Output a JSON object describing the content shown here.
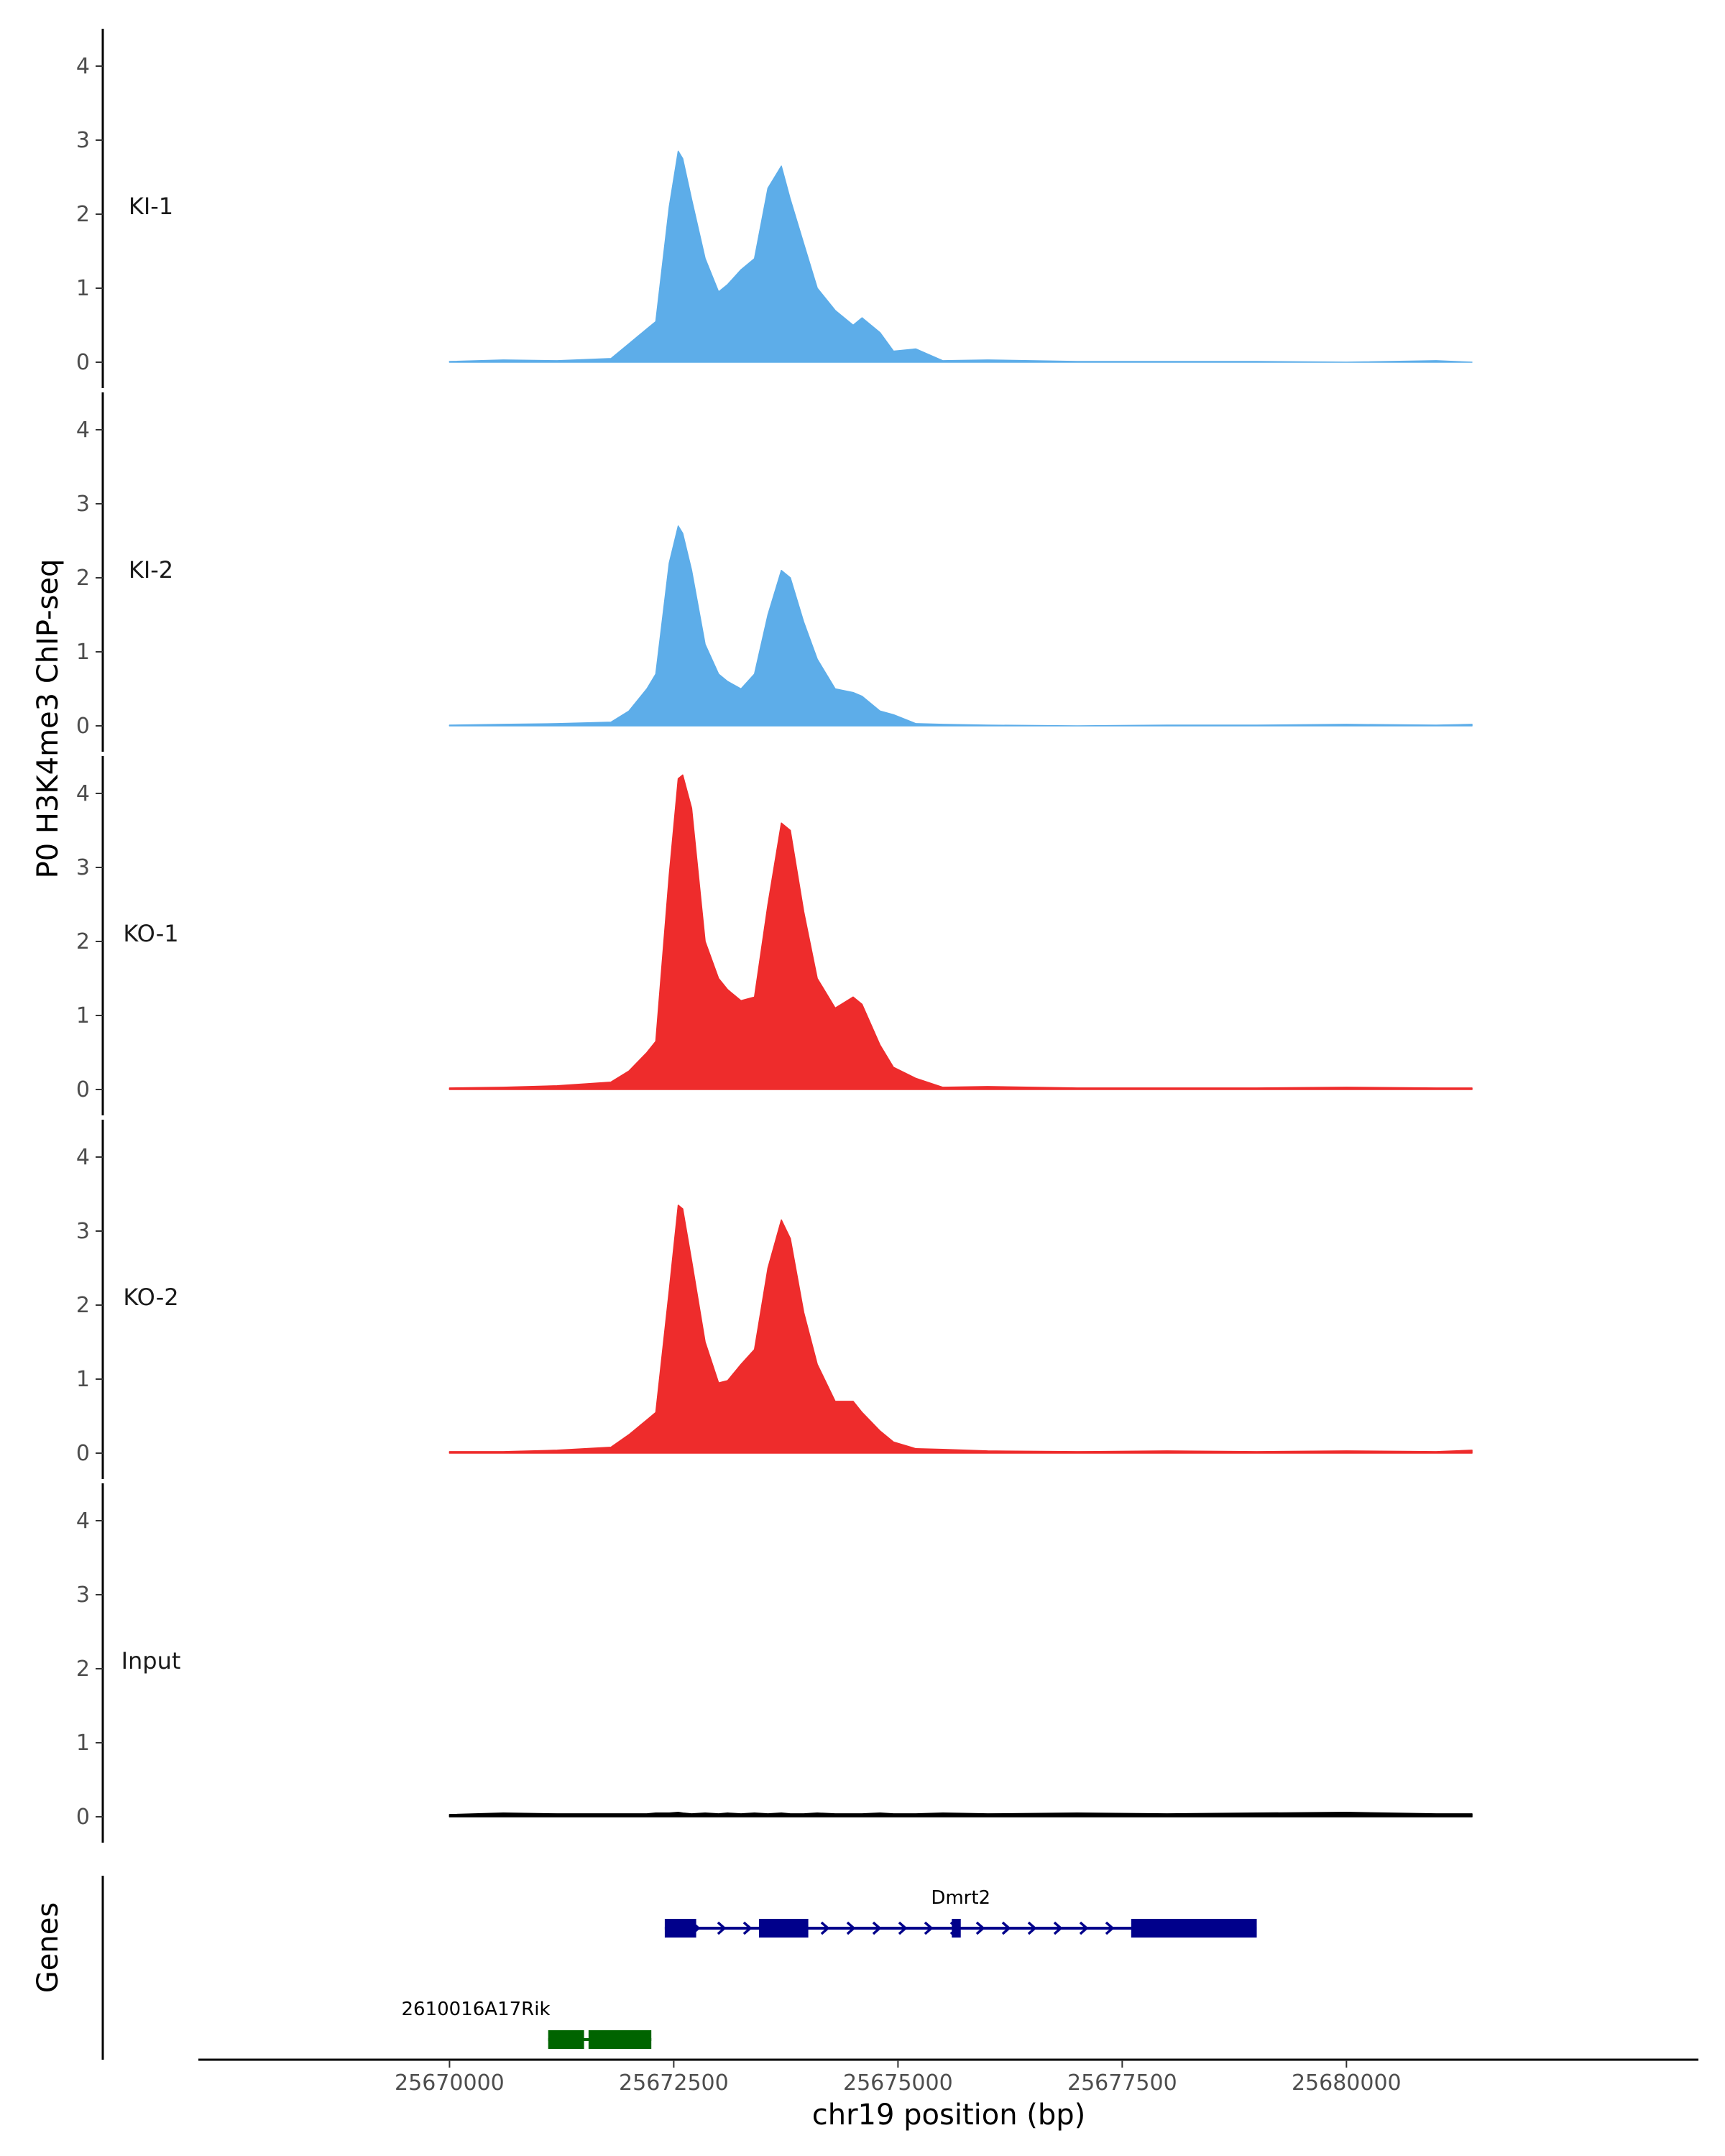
{
  "chart_data": {
    "type": "area",
    "ylabel": "P0 H3K4me3 ChIP-seq",
    "xlabel": "chr19 position (bp)",
    "xlim": [
      25667200,
      25683900
    ],
    "ylim": [
      -0.2,
      4.5
    ],
    "yticks": [
      0,
      1,
      2,
      3,
      4
    ],
    "xticks": [
      25670000,
      25672500,
      25675000,
      25677500,
      25680000
    ],
    "xtick_labels": [
      "25670000",
      "25672500",
      "25675000",
      "25677500",
      "25680000"
    ],
    "x": [
      25670000,
      25670600,
      25671200,
      25671800,
      25672000,
      25672200,
      25672300,
      25672450,
      25672550,
      25672600,
      25672700,
      25672850,
      25673000,
      25673100,
      25673250,
      25673400,
      25673550,
      25673700,
      25673800,
      25673950,
      25674100,
      25674300,
      25674500,
      25674600,
      25674800,
      25674950,
      25675200,
      25675500,
      25676000,
      25677000,
      25678000,
      25679000,
      25680000,
      25681000,
      25681400
    ],
    "series": [
      {
        "name": "KI-1",
        "color": "#5dade9",
        "values": [
          0.01,
          0.03,
          0.02,
          0.05,
          0.25,
          0.45,
          0.55,
          2.1,
          2.85,
          2.75,
          2.2,
          1.4,
          0.95,
          1.05,
          1.25,
          1.4,
          2.35,
          2.65,
          2.2,
          1.6,
          1.0,
          0.7,
          0.5,
          0.6,
          0.4,
          0.15,
          0.18,
          0.02,
          0.03,
          0.01,
          0.01,
          0.01,
          0.0,
          0.02,
          0.0
        ]
      },
      {
        "name": "KI-2",
        "color": "#5dade9",
        "values": [
          0.01,
          0.02,
          0.03,
          0.05,
          0.2,
          0.5,
          0.7,
          2.2,
          2.7,
          2.6,
          2.1,
          1.1,
          0.7,
          0.6,
          0.5,
          0.7,
          1.5,
          2.1,
          2.0,
          1.4,
          0.9,
          0.5,
          0.45,
          0.4,
          0.2,
          0.15,
          0.03,
          0.02,
          0.01,
          0.0,
          0.01,
          0.01,
          0.02,
          0.01,
          0.02
        ]
      },
      {
        "name": "KO-1",
        "color": "#ee2c2c",
        "values": [
          0.02,
          0.03,
          0.05,
          0.1,
          0.25,
          0.5,
          0.65,
          2.9,
          4.2,
          4.25,
          3.8,
          2.0,
          1.5,
          1.35,
          1.2,
          1.25,
          2.5,
          3.6,
          3.5,
          2.4,
          1.5,
          1.1,
          1.25,
          1.15,
          0.6,
          0.3,
          0.15,
          0.03,
          0.04,
          0.02,
          0.02,
          0.02,
          0.03,
          0.02,
          0.02
        ]
      },
      {
        "name": "KO-2",
        "color": "#ee2c2c",
        "values": [
          0.02,
          0.02,
          0.04,
          0.08,
          0.25,
          0.45,
          0.55,
          2.2,
          3.35,
          3.3,
          2.6,
          1.5,
          0.95,
          0.98,
          1.2,
          1.4,
          2.5,
          3.15,
          2.9,
          1.9,
          1.2,
          0.7,
          0.7,
          0.55,
          0.3,
          0.15,
          0.06,
          0.05,
          0.03,
          0.02,
          0.03,
          0.02,
          0.03,
          0.02,
          0.04
        ]
      },
      {
        "name": "Input",
        "color": "#000000",
        "values": [
          0.03,
          0.05,
          0.04,
          0.04,
          0.04,
          0.04,
          0.05,
          0.05,
          0.06,
          0.05,
          0.04,
          0.05,
          0.04,
          0.05,
          0.04,
          0.05,
          0.04,
          0.05,
          0.04,
          0.04,
          0.05,
          0.04,
          0.04,
          0.04,
          0.05,
          0.04,
          0.04,
          0.05,
          0.04,
          0.05,
          0.04,
          0.05,
          0.06,
          0.04,
          0.04
        ]
      }
    ],
    "genes_title": "Genes",
    "genes": [
      {
        "name": "Dmrt2",
        "color": "#00008b",
        "strand": "+",
        "start": 25672400,
        "end": 25679000,
        "exons": [
          [
            25672400,
            25672750
          ],
          [
            25673450,
            25674000
          ],
          [
            25675600,
            25675700
          ],
          [
            25677600,
            25679000
          ]
        ]
      },
      {
        "name": "2610016A17Rik",
        "color": "#006400",
        "strand": "+",
        "start": 25671100,
        "end": 25672250,
        "exons": [
          [
            25671100,
            25671500
          ],
          [
            25671550,
            25672250
          ]
        ]
      }
    ]
  }
}
